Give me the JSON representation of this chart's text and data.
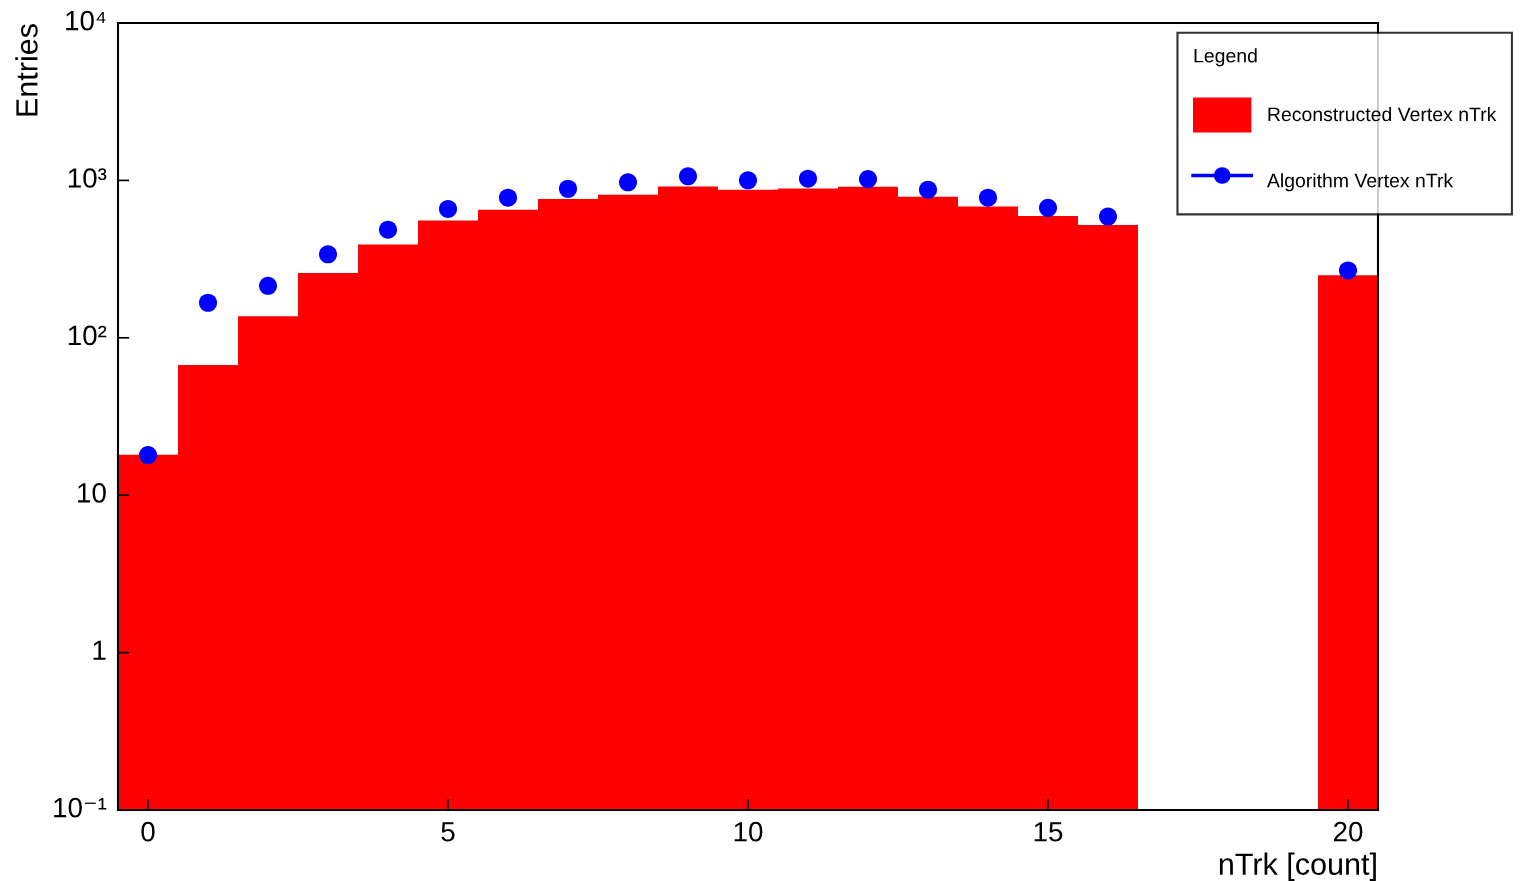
{
  "chart_data": {
    "type": "histogram",
    "xlabel": "nTrk [count]",
    "ylabel": "Entries",
    "legend_title": "Legend",
    "legend": "top right",
    "grid": false,
    "log": "y",
    "bins": [
      -0.5,
      0.5,
      1.5,
      2.5,
      3.5,
      4.5,
      5.5,
      6.5,
      7.5,
      8.5,
      9.5,
      10.5,
      11.5,
      12.5,
      13.5,
      14.5,
      15.5,
      16.5,
      17.5,
      18.5,
      19.5,
      20.5
    ],
    "xlim": [
      -0.5,
      20.5
    ],
    "xticks": [
      0,
      5,
      10,
      15,
      20
    ],
    "ylim": [
      0.1,
      10000
    ],
    "yticks": [
      {
        "value": 0.1,
        "label": "10⁻¹"
      },
      1,
      10,
      {
        "value": 100,
        "label": "10²"
      },
      {
        "value": 1000,
        "label": "10³"
      },
      {
        "value": 10000,
        "label": "10⁴"
      }
    ],
    "series": [
      {
        "name": "Reconstructed Vertex nTrk",
        "color": "#ff0000",
        "values": [
          18,
          67,
          137,
          258,
          392,
          556,
          650,
          762,
          811,
          916,
          873,
          889,
          911,
          787,
          682,
          595,
          521,
          null,
          null,
          null,
          250
        ]
      },
      {
        "name": "Algorithm Vertex nTrk",
        "type": "scatter",
        "color": "#0000ff",
        "marker": "circle",
        "x": [
          0,
          1,
          2,
          3,
          4,
          5,
          6,
          7,
          8,
          9,
          10,
          11,
          12,
          13,
          14,
          15,
          16,
          17,
          18,
          19,
          20
        ],
        "values": [
          18,
          167,
          214,
          339,
          486,
          659,
          776,
          885,
          972,
          1062,
          1002,
          1025,
          1020,
          873,
          776,
          670,
          589,
          null,
          null,
          null,
          268
        ]
      }
    ]
  }
}
